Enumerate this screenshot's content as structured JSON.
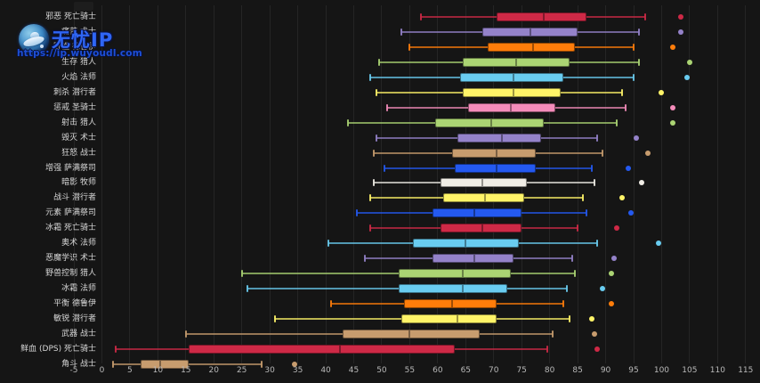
{
  "watermark": {
    "brand": "无忧IP",
    "url": "https://ip.wuyoudl.com"
  },
  "colors": {
    "background": "#151515",
    "grid": "rgba(255,255,255,0.07)",
    "axis_text": "#b9b9b9",
    "label_text": "#d6d6d6",
    "watermark_title": "#2f66f5",
    "watermark_url": "#1d4fd6",
    "death_knight": "#CE2946",
    "warlock": "#9482C9",
    "druid": "#FF7D0A",
    "hunter": "#ABD473",
    "mage": "#69CCF0",
    "rogue": "#FFF468",
    "paladin": "#F48CBA",
    "warrior": "#C79C6E",
    "shaman": "#2459F0",
    "priest": "#F0EDE6"
  },
  "chart_data": {
    "type": "boxplot",
    "orientation": "horizontal",
    "title": "",
    "xlabel": "",
    "ylabel": "",
    "xlim": [
      -5,
      115
    ],
    "grid": true,
    "x_ticks": [
      -5,
      0,
      5,
      10,
      15,
      20,
      25,
      30,
      35,
      40,
      45,
      50,
      55,
      60,
      65,
      70,
      75,
      80,
      85,
      90,
      95,
      100,
      105,
      110,
      115
    ],
    "series": [
      {
        "label": "邪恶 死亡骑士",
        "color": "#CE2946",
        "low": 57,
        "q1": 70.5,
        "median": 79,
        "q3": 86.5,
        "high": 97,
        "outlier": 103.5
      },
      {
        "label": "痛苦 术士",
        "color": "#9482C9",
        "low": 53.5,
        "q1": 68,
        "median": 76.5,
        "q3": 85,
        "high": 96,
        "outlier": 103.5
      },
      {
        "label": "野性 德鲁伊",
        "color": "#FF7D0A",
        "low": 55,
        "q1": 69,
        "median": 77,
        "q3": 84.5,
        "high": 95,
        "outlier": 102
      },
      {
        "label": "生存 猎人",
        "color": "#ABD473",
        "low": 49.5,
        "q1": 64.5,
        "median": 74,
        "q3": 83.5,
        "high": 96,
        "outlier": 105
      },
      {
        "label": "火焰 法师",
        "color": "#69CCF0",
        "low": 48,
        "q1": 64,
        "median": 73.5,
        "q3": 82.5,
        "high": 95,
        "outlier": 104.5
      },
      {
        "label": "刺杀 潜行者",
        "color": "#FFF468",
        "low": 49,
        "q1": 64.5,
        "median": 73.5,
        "q3": 82,
        "high": 93,
        "outlier": 100
      },
      {
        "label": "惩戒 圣骑士",
        "color": "#F48CBA",
        "low": 51,
        "q1": 65.5,
        "median": 73,
        "q3": 81,
        "high": 93.5,
        "outlier": 102
      },
      {
        "label": "射击 猎人",
        "color": "#ABD473",
        "low": 44,
        "q1": 59.5,
        "median": 69.5,
        "q3": 79,
        "high": 92,
        "outlier": 102
      },
      {
        "label": "毁灭 术士",
        "color": "#9482C9",
        "low": 49,
        "q1": 63.5,
        "median": 71.5,
        "q3": 78.5,
        "high": 88.5,
        "outlier": 95.5
      },
      {
        "label": "狂怒 战士",
        "color": "#C79C6E",
        "low": 48.5,
        "q1": 62.5,
        "median": 70.5,
        "q3": 77.5,
        "high": 89.5,
        "outlier": 97.5
      },
      {
        "label": "增强 萨满祭司",
        "color": "#2459F0",
        "low": 50.5,
        "q1": 63,
        "median": 70.5,
        "q3": 77.5,
        "high": 87.5,
        "outlier": 94
      },
      {
        "label": "暗影 牧师",
        "color": "#F0EDE6",
        "low": 48.5,
        "q1": 60.5,
        "median": 68,
        "q3": 76,
        "high": 88,
        "outlier": 96.5
      },
      {
        "label": "战斗 潜行者",
        "color": "#FFF468",
        "low": 48,
        "q1": 61,
        "median": 68.5,
        "q3": 75.5,
        "high": 86,
        "outlier": 93
      },
      {
        "label": "元素 萨满祭司",
        "color": "#2459F0",
        "low": 45.5,
        "q1": 59,
        "median": 66.5,
        "q3": 75,
        "high": 86.5,
        "outlier": 94.5
      },
      {
        "label": "冰霜 死亡骑士",
        "color": "#CE2946",
        "low": 48,
        "q1": 60.5,
        "median": 68,
        "q3": 75,
        "high": 85,
        "outlier": 92
      },
      {
        "label": "奥术 法师",
        "color": "#69CCF0",
        "low": 40.5,
        "q1": 55.5,
        "median": 65,
        "q3": 74.5,
        "high": 88.5,
        "outlier": 99.5
      },
      {
        "label": "恶魔学识 术士",
        "color": "#9482C9",
        "low": 47,
        "q1": 59,
        "median": 66.5,
        "q3": 73.5,
        "high": 84,
        "outlier": 91.5
      },
      {
        "label": "野兽控制 猎人",
        "color": "#ABD473",
        "low": 25,
        "q1": 53,
        "median": 64.5,
        "q3": 73,
        "high": 84.5,
        "outlier": 91
      },
      {
        "label": "冰霜 法师",
        "color": "#69CCF0",
        "low": 26,
        "q1": 53,
        "median": 64.5,
        "q3": 72.5,
        "high": 83,
        "outlier": 89.5
      },
      {
        "label": "平衡 德鲁伊",
        "color": "#FF7D0A",
        "low": 41,
        "q1": 54,
        "median": 62.5,
        "q3": 70.5,
        "high": 82.5,
        "outlier": 91
      },
      {
        "label": "敏锐 潜行者",
        "color": "#FFF468",
        "low": 31,
        "q1": 53.5,
        "median": 63.5,
        "q3": 70.5,
        "high": 83.5,
        "outlier": 87.5
      },
      {
        "label": "武器 战士",
        "color": "#C79C6E",
        "low": 15,
        "q1": 43,
        "median": 55,
        "q3": 67.5,
        "high": 80.5,
        "outlier": 88
      },
      {
        "label": "鲜血 (DPS) 死亡骑士",
        "color": "#CE2946",
        "low": 2.5,
        "q1": 15.5,
        "median": 42.5,
        "q3": 63,
        "high": 79.5,
        "outlier": 88.5
      },
      {
        "label": "角斗 战士",
        "color": "#C79C6E",
        "low": 2,
        "q1": 7,
        "median": 10.5,
        "q3": 15.5,
        "high": 28.5,
        "outlier": 34.5
      }
    ]
  }
}
